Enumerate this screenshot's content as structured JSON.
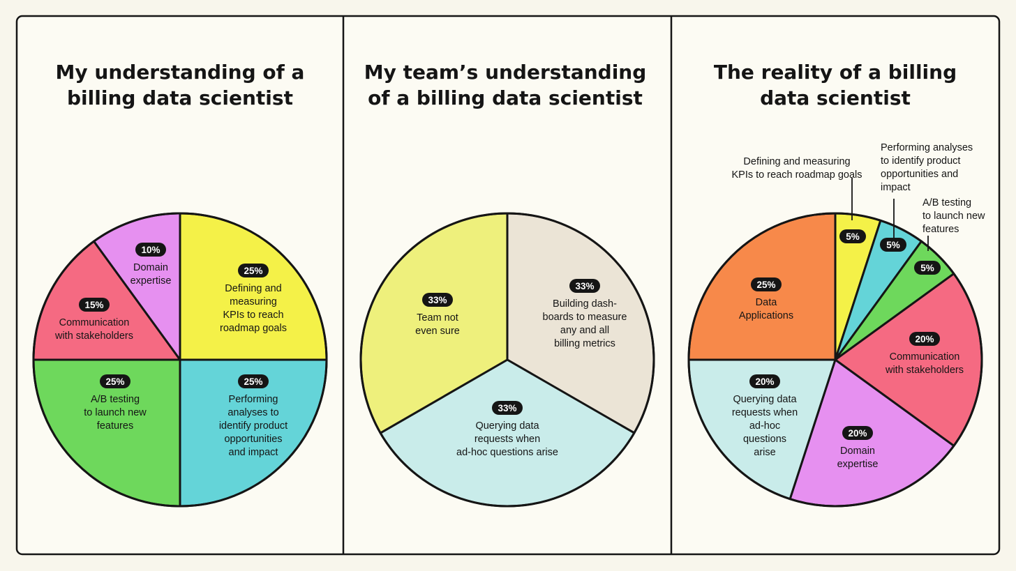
{
  "chart_data": [
    {
      "type": "pie",
      "title": [
        "My understanding of a",
        "billing data scientist"
      ],
      "slices": [
        {
          "pct": 25,
          "value": "25%",
          "lines": [
            "Defining and",
            "measuring",
            "KPIs to reach",
            "roadmap goals"
          ],
          "color": "#f4f148"
        },
        {
          "pct": 25,
          "value": "25%",
          "lines": [
            "Performing",
            "analyses to",
            "identify product",
            "opportunities",
            "and impact"
          ],
          "color": "#64d4d8"
        },
        {
          "pct": 25,
          "value": "25%",
          "lines": [
            "A/B testing",
            "to launch new",
            "features"
          ],
          "color": "#6ed85c"
        },
        {
          "pct": 15,
          "value": "15%",
          "lines": [
            "Communication",
            "with stakeholders"
          ],
          "color": "#f56a82"
        },
        {
          "pct": 10,
          "value": "10%",
          "lines": [
            "Domain",
            "expertise"
          ],
          "color": "#e690f0"
        }
      ]
    },
    {
      "type": "pie",
      "title": [
        "My team’s understanding",
        "of a billing data scientist"
      ],
      "slices": [
        {
          "pct": 33.33,
          "value": "33%",
          "lines": [
            "Building dash-",
            "boards to measure",
            "any and all",
            "billing metrics"
          ],
          "color": "#ebe4d6"
        },
        {
          "pct": 33.33,
          "value": "33%",
          "lines": [
            "Querying data",
            "requests when",
            "ad-hoc questions arise"
          ],
          "color": "#c9ecea"
        },
        {
          "pct": 33.34,
          "value": "33%",
          "lines": [
            "Team not",
            "even sure"
          ],
          "color": "#eef07c"
        }
      ]
    },
    {
      "type": "pie",
      "title": [
        "The reality of a billing",
        "data scientist"
      ],
      "slices": [
        {
          "pct": 5,
          "value": "5%",
          "lines": [
            "Defining and measuring",
            "KPIs to reach roadmap goals"
          ],
          "color": "#f4f148",
          "outside": true
        },
        {
          "pct": 5,
          "value": "5%",
          "lines": [
            "Performing analyses",
            "to identify product",
            "opportunities and",
            "impact"
          ],
          "color": "#64d4d8",
          "outside": true
        },
        {
          "pct": 5,
          "value": "5%",
          "lines": [
            "A/B testing",
            "to launch new",
            "features"
          ],
          "color": "#6ed85c",
          "outside": true
        },
        {
          "pct": 20,
          "value": "20%",
          "lines": [
            "Communication",
            "with stakeholders"
          ],
          "color": "#f56a82"
        },
        {
          "pct": 20,
          "value": "20%",
          "lines": [
            "Domain",
            "expertise"
          ],
          "color": "#e690f0"
        },
        {
          "pct": 20,
          "value": "20%",
          "lines": [
            "Querying data",
            "requests when",
            "ad-hoc",
            "questions",
            "arise"
          ],
          "color": "#c9ecea"
        },
        {
          "pct": 25,
          "value": "25%",
          "lines": [
            "Data",
            "Applications"
          ],
          "color": "#f7894a"
        }
      ]
    }
  ]
}
